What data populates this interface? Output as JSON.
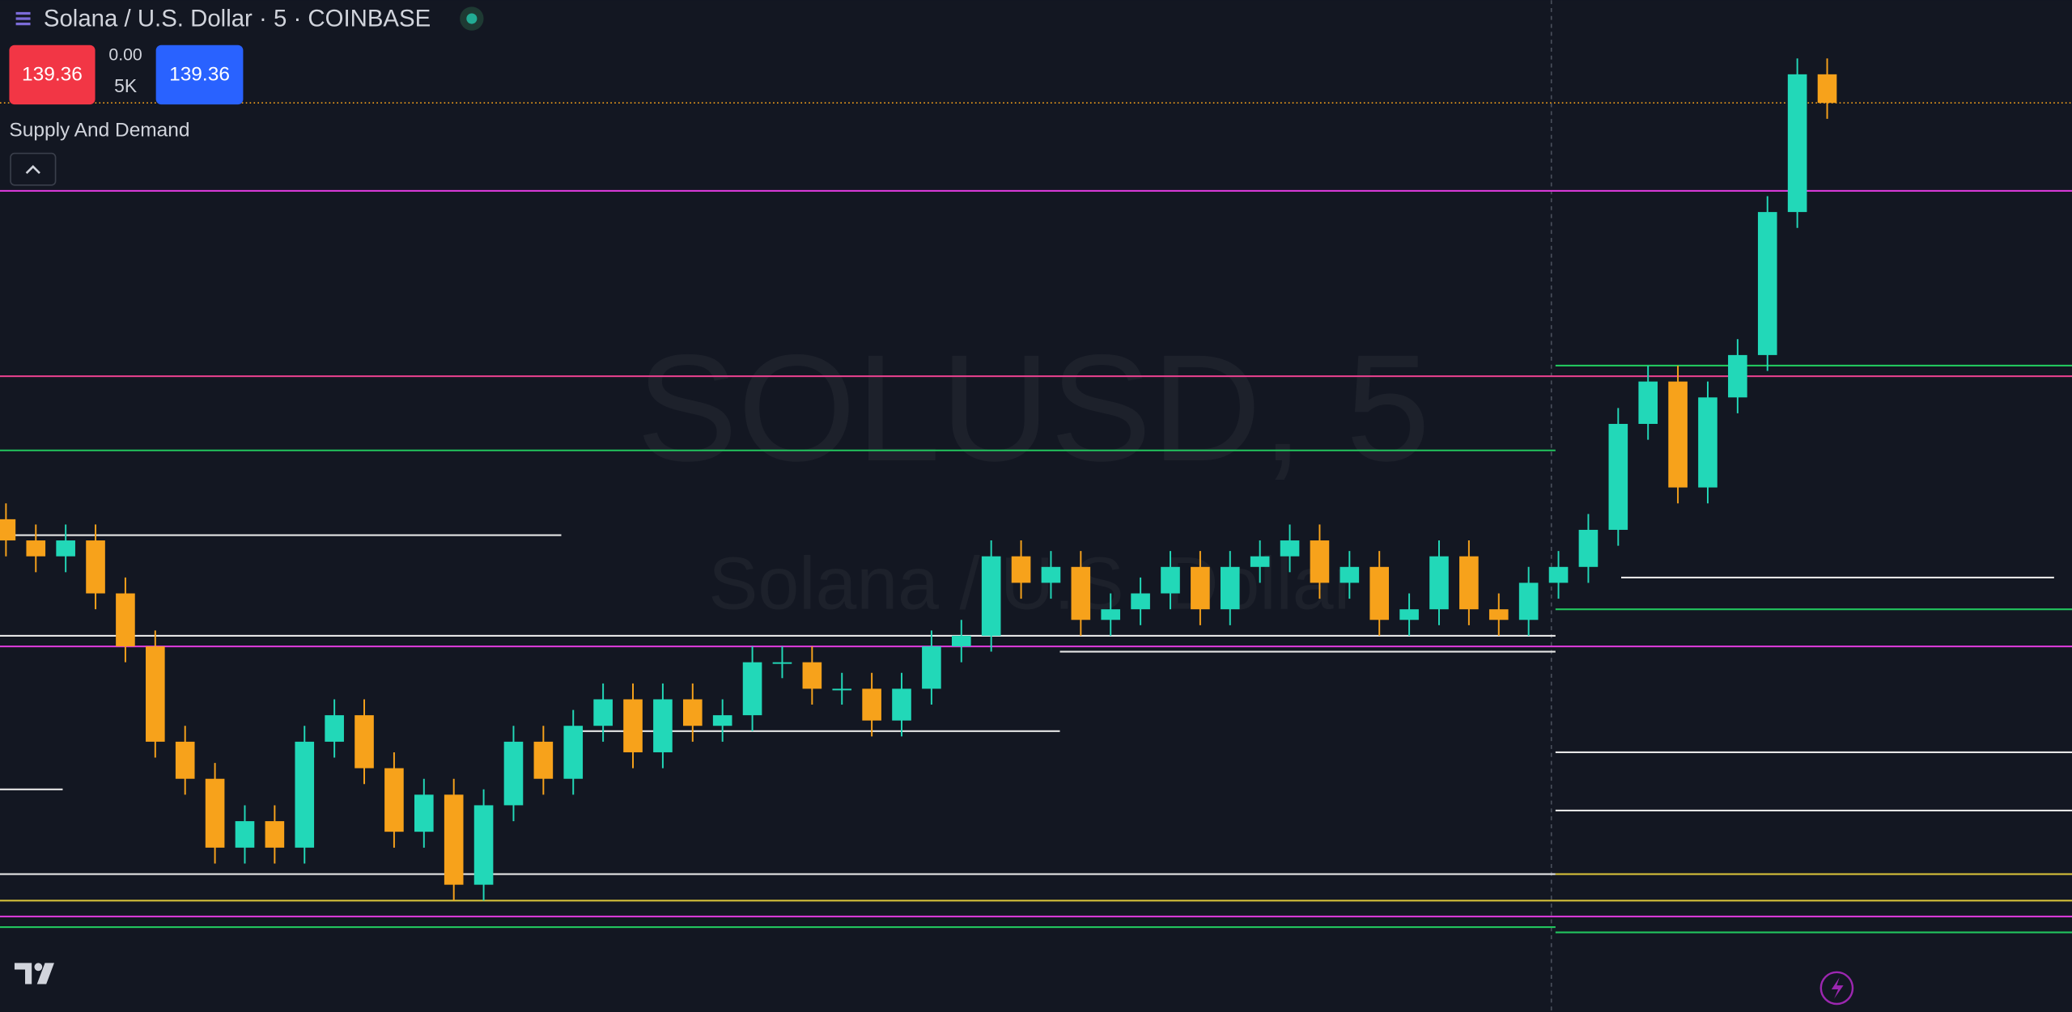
{
  "header": {
    "title": "Solana / U.S. Dollar · 5 · COINBASE",
    "sell_price": "139.36",
    "spread": "0.00",
    "volume": "5K",
    "buy_price": "139.36",
    "indicator": "Supply And Demand"
  },
  "watermark": {
    "symbol": "SOLUSD, 5",
    "name": "Solana / U.S. Dollar"
  },
  "chart_data": {
    "type": "candlestick",
    "up_color": "#22d8b8",
    "down_color": "#f7a21b",
    "xlim": [
      -0.2,
      69.2
    ],
    "ylim": [
      122.2,
      141.3
    ],
    "open": [
      131.5,
      131.1,
      130.8,
      131.1,
      130.1,
      129.1,
      127.3,
      126.6,
      125.3,
      125.8,
      125.3,
      127.3,
      127.8,
      126.8,
      125.6,
      126.3,
      124.6,
      126.1,
      127.3,
      126.6,
      127.6,
      128.1,
      127.1,
      128.1,
      127.6,
      127.8,
      128.8,
      128.8,
      128.3,
      128.3,
      127.7,
      128.3,
      129.1,
      129.3,
      130.8,
      130.3,
      130.6,
      129.6,
      129.8,
      130.1,
      130.6,
      129.8,
      130.6,
      130.8,
      131.1,
      130.3,
      130.6,
      129.6,
      129.8,
      130.8,
      129.8,
      129.6,
      130.3,
      130.6,
      131.3,
      133.3,
      134.1,
      132.1,
      133.8,
      134.6,
      137.3,
      139.9
    ],
    "high": [
      131.8,
      131.4,
      131.4,
      131.4,
      130.4,
      129.4,
      127.6,
      126.9,
      126.1,
      126.1,
      127.6,
      128.1,
      128.1,
      127.1,
      126.6,
      126.6,
      126.4,
      127.6,
      127.6,
      127.9,
      128.4,
      128.4,
      128.4,
      128.4,
      128.1,
      129.1,
      129.1,
      129.1,
      128.6,
      128.6,
      128.6,
      129.4,
      129.6,
      131.1,
      131.1,
      130.9,
      130.9,
      130.1,
      130.4,
      130.9,
      130.9,
      130.9,
      131.1,
      131.4,
      131.4,
      130.9,
      130.9,
      130.1,
      131.1,
      131.1,
      130.1,
      130.6,
      130.9,
      131.6,
      133.6,
      134.4,
      134.4,
      134.1,
      134.9,
      137.6,
      140.2,
      140.2
    ],
    "low": [
      130.8,
      130.5,
      130.5,
      129.8,
      128.8,
      127.0,
      126.3,
      125.0,
      125.0,
      125.0,
      125.0,
      127.0,
      126.5,
      125.3,
      125.3,
      124.3,
      124.3,
      125.8,
      126.3,
      126.3,
      127.3,
      126.8,
      126.8,
      127.3,
      127.3,
      127.5,
      128.5,
      128.0,
      128.0,
      127.4,
      127.4,
      128.0,
      128.8,
      129.0,
      130.0,
      130.0,
      129.3,
      129.3,
      129.5,
      129.8,
      129.5,
      129.5,
      130.3,
      130.5,
      130.0,
      130.0,
      129.3,
      129.3,
      129.5,
      129.5,
      129.3,
      129.3,
      130.0,
      130.3,
      131.0,
      133.0,
      131.8,
      131.8,
      133.5,
      134.3,
      137.0,
      139.06
    ],
    "close": [
      131.1,
      130.8,
      131.1,
      130.1,
      129.1,
      127.3,
      126.6,
      125.3,
      125.8,
      125.3,
      127.3,
      127.8,
      126.8,
      125.6,
      126.3,
      124.6,
      126.1,
      127.3,
      126.6,
      127.6,
      128.1,
      127.1,
      128.1,
      127.6,
      127.8,
      128.8,
      128.8,
      128.3,
      128.3,
      127.7,
      128.3,
      129.1,
      129.3,
      130.8,
      130.3,
      130.6,
      129.6,
      129.8,
      130.1,
      130.6,
      129.8,
      130.6,
      130.8,
      131.1,
      130.3,
      130.6,
      129.6,
      129.8,
      130.8,
      129.8,
      129.6,
      130.3,
      130.6,
      131.3,
      133.3,
      134.1,
      132.1,
      133.8,
      134.6,
      137.3,
      139.9,
      139.36
    ],
    "last_price_color": "#f7a21b",
    "levels": [
      {
        "value": 137.7,
        "color": "#d63ad6",
        "x": [
          -0.2,
          69.2
        ]
      },
      {
        "value": 134.2,
        "color": "#e0408a",
        "x": [
          -0.2,
          69.2
        ]
      },
      {
        "value": 132.8,
        "color": "#22c55e",
        "x": [
          -0.2,
          51.9
        ]
      },
      {
        "value": 134.4,
        "color": "#22c55e",
        "x": [
          51.9,
          69.2
        ]
      },
      {
        "value": 131.2,
        "color": "#e6e6e6",
        "x": [
          -0.2,
          18.6
        ]
      },
      {
        "value": 129.3,
        "color": "#e6e6e6",
        "x": [
          -0.2,
          51.9
        ]
      },
      {
        "value": 129.0,
        "color": "#e6e6e6",
        "x": [
          35.3,
          51.9
        ]
      },
      {
        "value": 129.1,
        "color": "#d63ad6",
        "x": [
          -0.2,
          69.2
        ]
      },
      {
        "value": 127.5,
        "color": "#e6e6e6",
        "x": [
          18.8,
          35.3
        ]
      },
      {
        "value": 126.4,
        "color": "#e6e6e6",
        "x": [
          -0.2,
          1.9
        ]
      },
      {
        "value": 130.4,
        "color": "#e6e6e6",
        "x": [
          54.1,
          68.6
        ]
      },
      {
        "value": 129.8,
        "color": "#22c55e",
        "x": [
          51.9,
          69.2
        ]
      },
      {
        "value": 127.1,
        "color": "#e6e6e6",
        "x": [
          51.9,
          69.2
        ]
      },
      {
        "value": 126.0,
        "color": "#e6e6e6",
        "x": [
          51.9,
          69.2
        ]
      },
      {
        "value": 124.8,
        "color": "#e6e6e6",
        "x": [
          -0.2,
          51.9
        ]
      },
      {
        "value": 124.8,
        "color": "#d4c03a",
        "x": [
          51.9,
          69.2
        ]
      },
      {
        "value": 124.3,
        "color": "#d4c03a",
        "x": [
          -0.2,
          69.2
        ]
      },
      {
        "value": 124.0,
        "color": "#d63ad6",
        "x": [
          -0.2,
          69.2
        ]
      },
      {
        "value": 123.8,
        "color": "#22c55e",
        "x": [
          -0.2,
          51.9
        ]
      },
      {
        "value": 123.7,
        "color": "#22c55e",
        "x": [
          51.9,
          69.2
        ]
      }
    ]
  }
}
